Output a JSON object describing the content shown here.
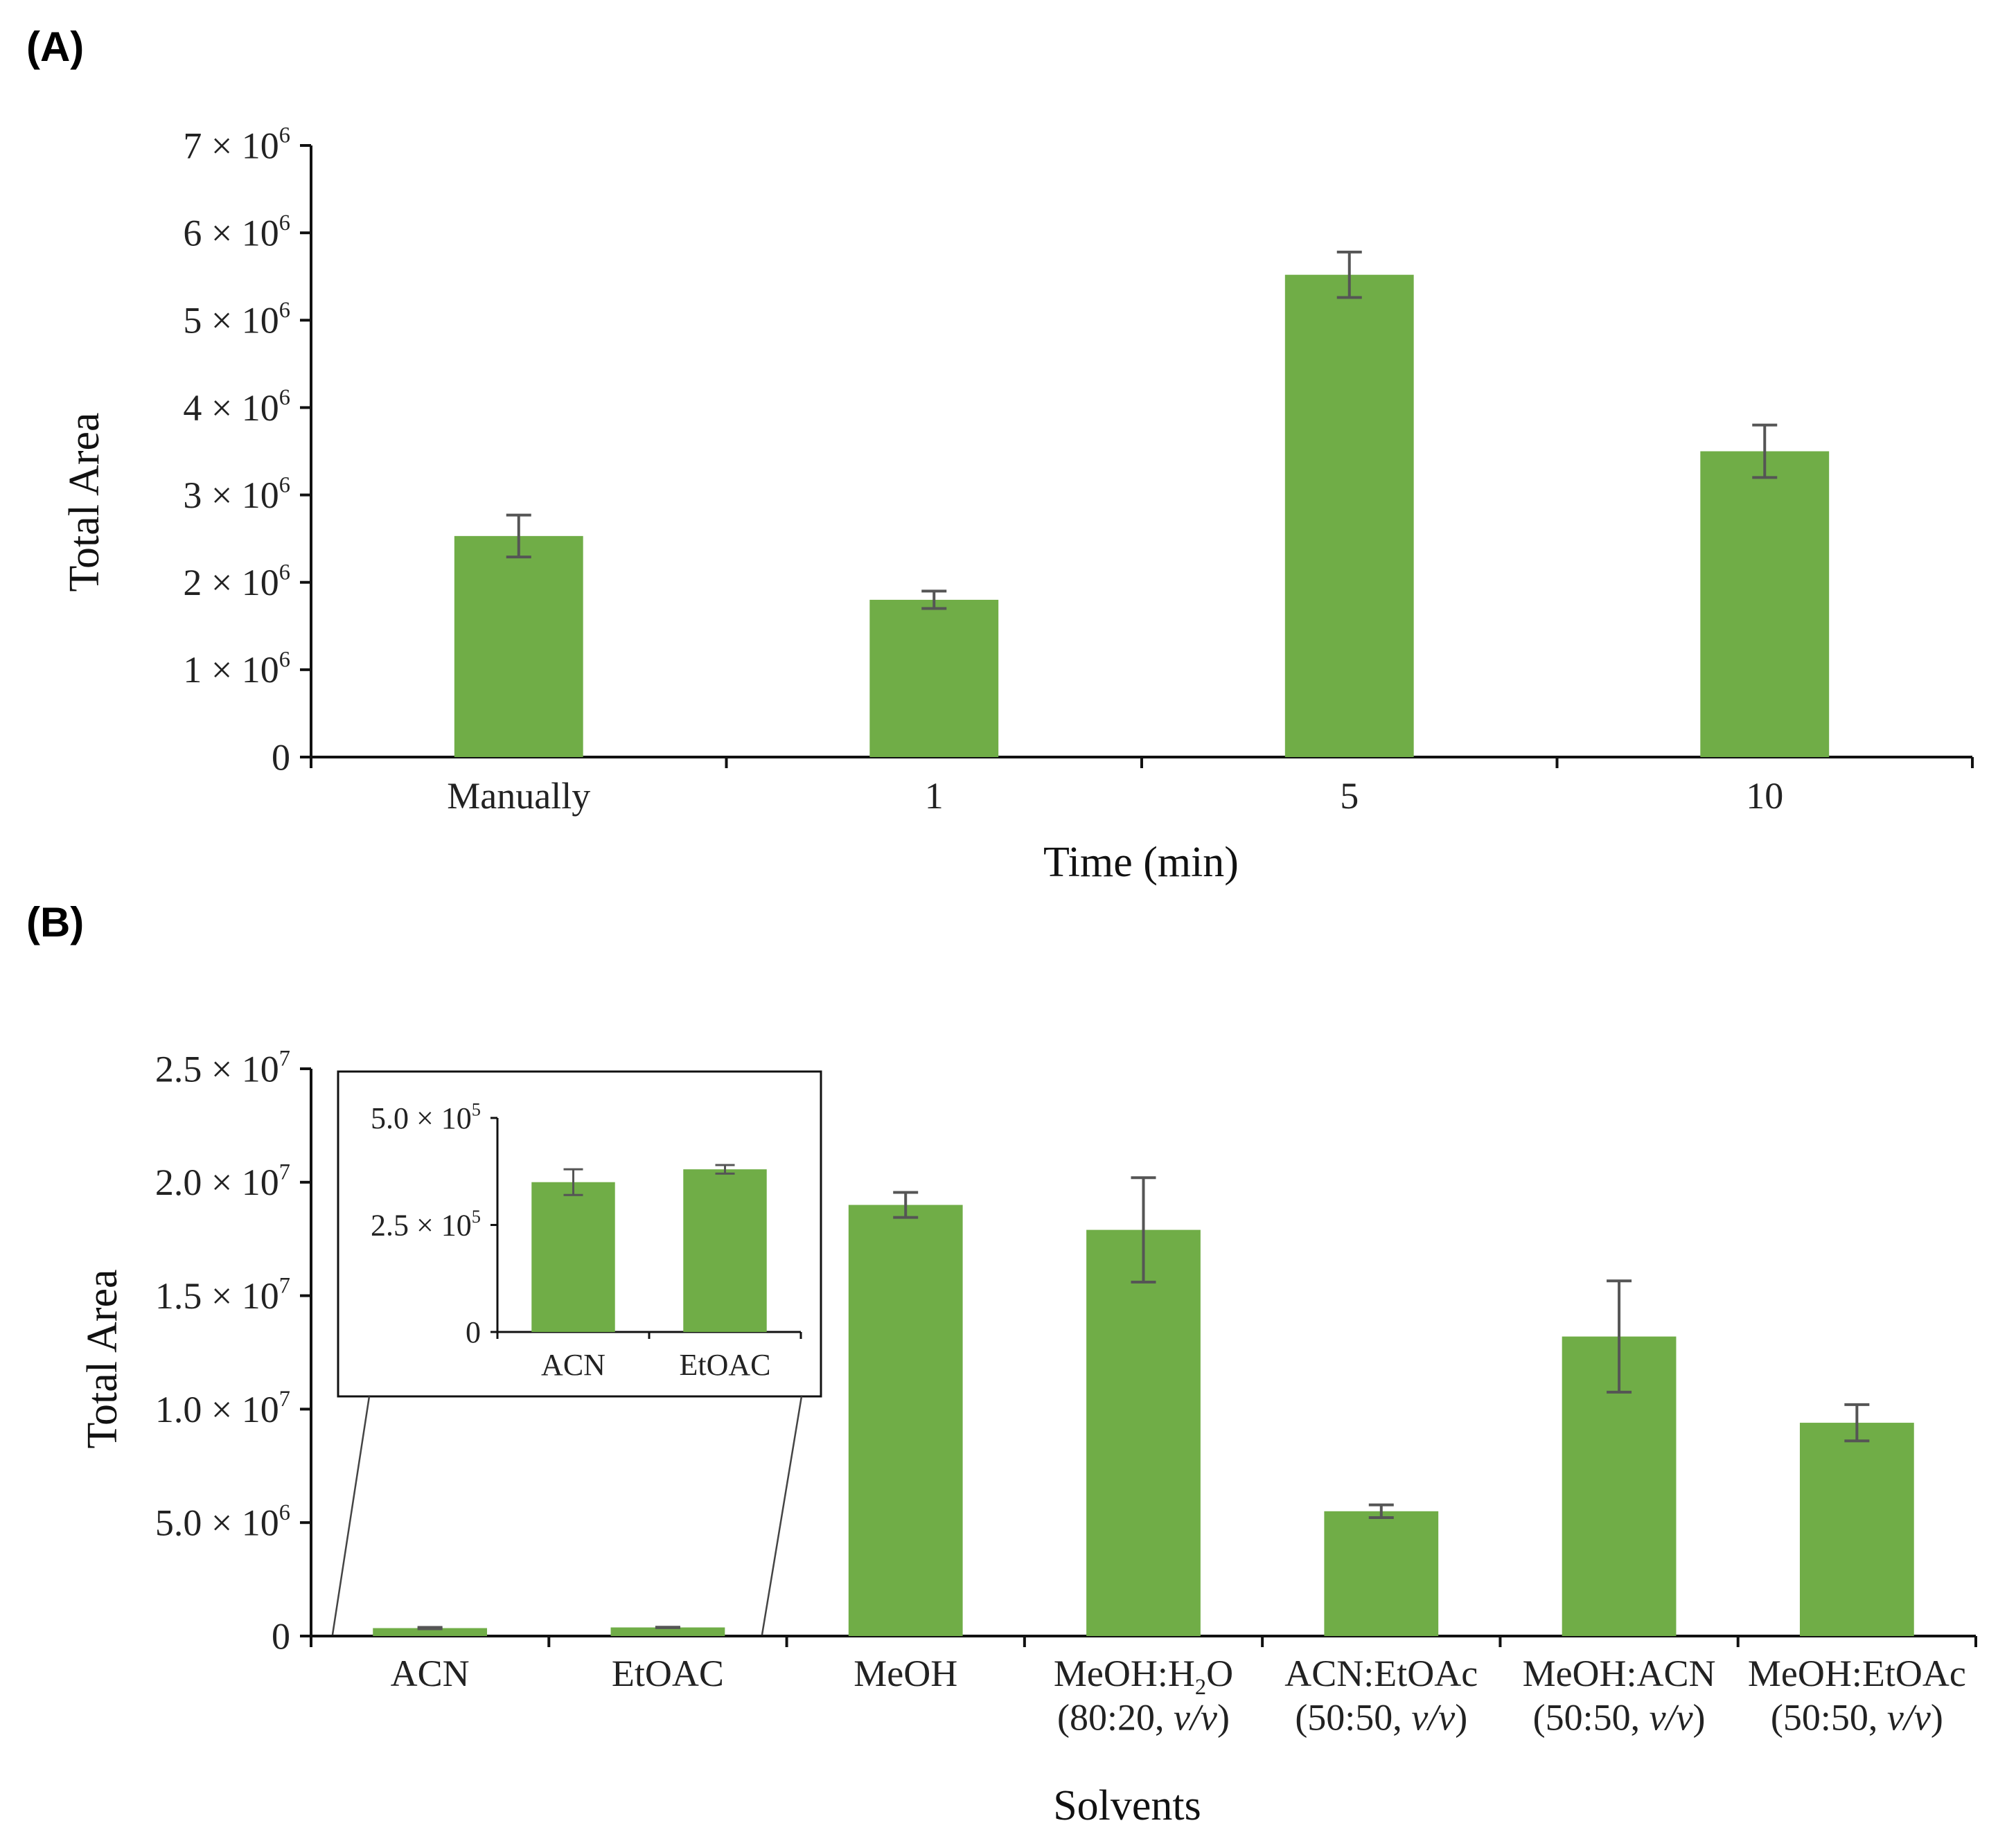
{
  "chart_data": [
    {
      "panel": "(A)",
      "type": "bar",
      "title": "",
      "xlabel": "Time (min)",
      "ylabel": "Total Area",
      "categories": [
        "Manually",
        "1",
        "5",
        "10"
      ],
      "values": [
        2530000,
        1800000,
        5520000,
        3500000
      ],
      "errors": [
        240000,
        100000,
        260000,
        300000
      ],
      "ylim": [
        0,
        7000000
      ],
      "yticks": [
        {
          "value": 0,
          "mantissa": "0",
          "exp": ""
        },
        {
          "value": 1000000,
          "mantissa": "1 × 10",
          "exp": "6"
        },
        {
          "value": 2000000,
          "mantissa": "2 × 10",
          "exp": "6"
        },
        {
          "value": 3000000,
          "mantissa": "3 × 10",
          "exp": "6"
        },
        {
          "value": 4000000,
          "mantissa": "4 × 10",
          "exp": "6"
        },
        {
          "value": 5000000,
          "mantissa": "5 × 10",
          "exp": "6"
        },
        {
          "value": 6000000,
          "mantissa": "6 × 10",
          "exp": "6"
        },
        {
          "value": 7000000,
          "mantissa": "7 × 10",
          "exp": "6"
        }
      ],
      "grid": false,
      "bar_color": "#70AD47"
    },
    {
      "panel": "(B)",
      "type": "bar",
      "title": "",
      "xlabel": "Solvents",
      "ylabel": "Total Area",
      "categories": [
        {
          "line1": "ACN",
          "line2": ""
        },
        {
          "line1": "EtOAC",
          "line2": ""
        },
        {
          "line1": "MeOH",
          "line2": ""
        },
        {
          "line1": "MeOH:H",
          "sub": "2",
          "line1b": "O",
          "line2": "(80:20, ",
          "line2i": "v/v",
          "line2e": ")"
        },
        {
          "line1": "ACN:EtOAc",
          "line2": "(50:50, ",
          "line2i": "v/v",
          "line2e": ")"
        },
        {
          "line1": "MeOH:ACN",
          "line2": "(50:50, ",
          "line2i": "v/v",
          "line2e": ")"
        },
        {
          "line1": "MeOH:EtOAc",
          "line2": "(50:50, ",
          "line2i": "v/v",
          "line2e": ")"
        }
      ],
      "values": [
        350000,
        380000,
        19000000,
        17900000,
        5500000,
        13200000,
        9400000
      ],
      "errors": [
        30000,
        10000,
        550000,
        2300000,
        280000,
        2450000,
        800000
      ],
      "ylim": [
        0,
        25000000
      ],
      "yticks": [
        {
          "value": 0,
          "mantissa": "0",
          "exp": ""
        },
        {
          "value": 5000000,
          "mantissa": "5.0 × 10",
          "exp": "6"
        },
        {
          "value": 10000000,
          "mantissa": "1.0 × 10",
          "exp": "7"
        },
        {
          "value": 15000000,
          "mantissa": "1.5 × 10",
          "exp": "7"
        },
        {
          "value": 20000000,
          "mantissa": "2.0 × 10",
          "exp": "7"
        },
        {
          "value": 25000000,
          "mantissa": "2.5 × 10",
          "exp": "7"
        }
      ],
      "grid": false,
      "bar_color": "#70AD47",
      "inset": {
        "type": "bar",
        "categories": [
          "ACN",
          "EtOAC"
        ],
        "values": [
          350000,
          380000
        ],
        "errors": [
          30000,
          10000
        ],
        "ylim": [
          0,
          500000
        ],
        "yticks": [
          {
            "value": 0,
            "mantissa": "0",
            "exp": ""
          },
          {
            "value": 250000,
            "mantissa": "2.5 × 10",
            "exp": "5"
          },
          {
            "value": 500000,
            "mantissa": "5.0 × 10",
            "exp": "5"
          }
        ]
      }
    }
  ]
}
